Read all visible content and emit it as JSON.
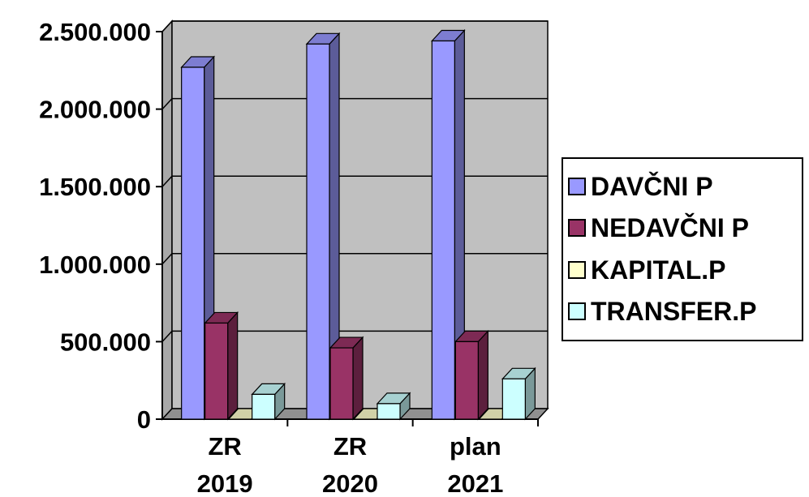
{
  "chart_data": {
    "type": "bar",
    "categories": [
      [
        "ZR",
        "2019"
      ],
      [
        "ZR",
        "2020"
      ],
      [
        "plan",
        "2021"
      ]
    ],
    "series": [
      {
        "name": "DAVČNI P",
        "values": [
          2270000,
          2420000,
          2440000
        ],
        "color": "#9999ff"
      },
      {
        "name": "NEDAVČNI P",
        "values": [
          620000,
          460000,
          500000
        ],
        "color": "#993366"
      },
      {
        "name": "KAPITAL.P",
        "values": [
          0,
          0,
          0
        ],
        "color": "#ffffcc"
      },
      {
        "name": "TRANSFER.P",
        "values": [
          160000,
          100000,
          260000
        ],
        "color": "#ccffff"
      }
    ],
    "yticks": [
      "0",
      "500.000",
      "1.000.000",
      "1.500.000",
      "2.000.000",
      "2.500.000"
    ],
    "ylim": [
      0,
      2500000
    ],
    "grid": true,
    "legend": "right",
    "plot_background": "#c0c0c0"
  }
}
